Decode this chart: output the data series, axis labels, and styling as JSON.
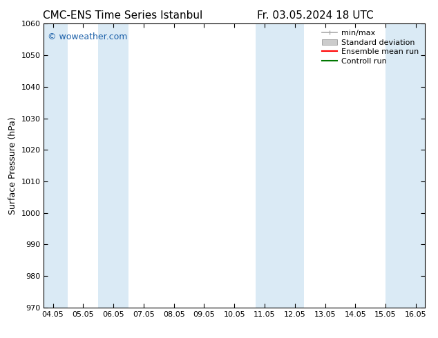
{
  "title_left": "CMC-ENS Time Series Istanbul",
  "title_right": "Fr. 03.05.2024 18 UTC",
  "ylabel": "Surface Pressure (hPa)",
  "ylim": [
    970,
    1060
  ],
  "yticks": [
    970,
    980,
    990,
    1000,
    1010,
    1020,
    1030,
    1040,
    1050,
    1060
  ],
  "xtick_labels": [
    "04.05",
    "05.05",
    "06.05",
    "07.05",
    "08.05",
    "09.05",
    "10.05",
    "11.05",
    "12.05",
    "13.05",
    "14.05",
    "15.05",
    "16.05"
  ],
  "xtick_positions": [
    0,
    1,
    2,
    3,
    4,
    5,
    6,
    7,
    8,
    9,
    10,
    11,
    12
  ],
  "xlim": [
    -0.3,
    12.3
  ],
  "shaded_bands": [
    {
      "xmin": -0.3,
      "xmax": 0.5,
      "color": "#daeaf5"
    },
    {
      "xmin": 1.5,
      "xmax": 2.5,
      "color": "#daeaf5"
    },
    {
      "xmin": 6.7,
      "xmax": 8.3,
      "color": "#daeaf5"
    },
    {
      "xmin": 11.0,
      "xmax": 12.3,
      "color": "#daeaf5"
    }
  ],
  "watermark_text": "© woweather.com",
  "watermark_color": "#1a5fa8",
  "legend_items": [
    {
      "label": "min/max",
      "type": "errorbar",
      "color": "#aaaaaa"
    },
    {
      "label": "Standard deviation",
      "type": "band",
      "color": "#cccccc"
    },
    {
      "label": "Ensemble mean run",
      "type": "line",
      "color": "#ff0000"
    },
    {
      "label": "Controll run",
      "type": "line",
      "color": "#007700"
    }
  ],
  "background_color": "#ffffff",
  "plot_bg_color": "#ffffff",
  "title_fontsize": 11,
  "ylabel_fontsize": 9,
  "tick_fontsize": 8,
  "legend_fontsize": 8
}
